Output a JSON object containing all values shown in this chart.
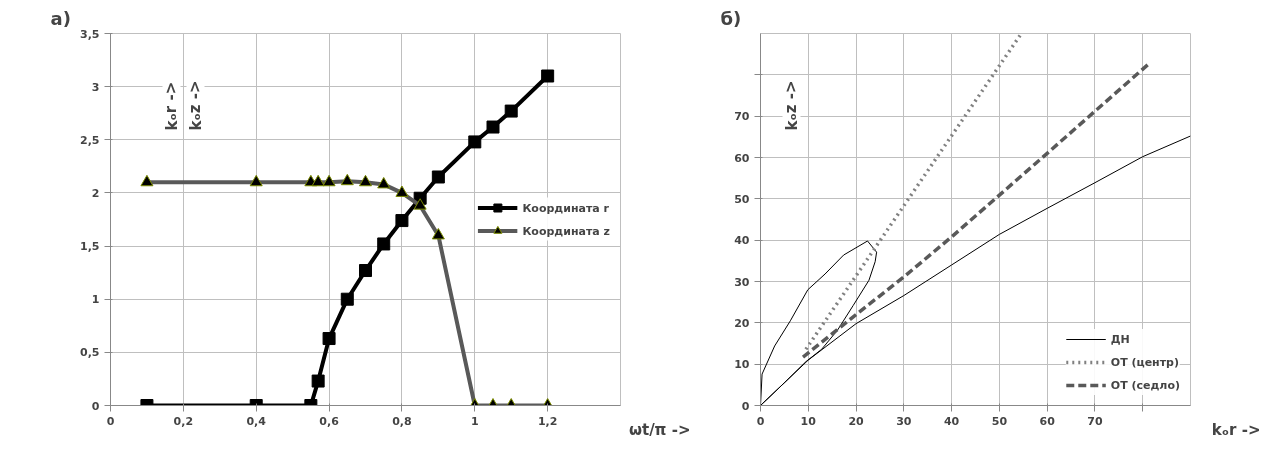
{
  "chart_data": [
    {
      "type": "line",
      "title": "а)",
      "xlabel": "ωt/π ->",
      "ylabel": "kₒr ->",
      "annotations": [
        "kₒz ->"
      ],
      "xlim": [
        0,
        1.4
      ],
      "ylim": [
        0,
        3.5
      ],
      "xticks": [
        0,
        {
          "value": 0.2,
          "label": "0,2"
        },
        {
          "value": 0.4,
          "label": "0,4"
        },
        {
          "value": 0.6,
          "label": "0,6"
        },
        {
          "value": 0.8,
          "label": "0,8"
        },
        1,
        {
          "value": 1.2,
          "label": "1,2"
        }
      ],
      "yticks": [
        0,
        {
          "value": 0.5,
          "label": "0,5"
        },
        1,
        {
          "value": 1.5,
          "label": "1,5"
        },
        2,
        {
          "value": 2.5,
          "label": "2,5"
        },
        3,
        {
          "value": 3.5,
          "label": "3,5"
        }
      ],
      "grid": true,
      "legend": "right",
      "line_style": "solid",
      "series": [
        {
          "name": "Координата r",
          "color": "#000000",
          "marker": "square",
          "x": [
            0.1,
            0.4,
            0.55,
            0.57,
            0.6,
            0.65,
            0.7,
            0.75,
            0.8,
            0.85,
            0.9,
            1,
            1.05,
            1.1,
            1.2
          ],
          "values": [
            0,
            0,
            0,
            0.23,
            0.63,
            1.0,
            1.27,
            1.52,
            1.74,
            1.95,
            2.15,
            2.48,
            2.62,
            2.77,
            3.1
          ]
        },
        {
          "name": "Координата z",
          "color": "#595959",
          "marker": "triangle",
          "x": [
            0.1,
            0.4,
            0.55,
            0.57,
            0.6,
            0.65,
            0.7,
            0.75,
            0.8,
            0.85,
            0.9,
            1,
            1.05,
            1.1,
            1.2
          ],
          "values": [
            2.1,
            2.1,
            2.1,
            2.1,
            2.1,
            2.11,
            2.1,
            2.08,
            2.0,
            1.88,
            1.6,
            0,
            0,
            0,
            0
          ]
        }
      ]
    },
    {
      "type": "line",
      "title": "б)",
      "xlabel": "kₒr ->",
      "ylabel": "kₒz ->",
      "xlim": [
        0,
        90
      ],
      "ylim": [
        0,
        90
      ],
      "xticks": [
        0,
        10,
        20,
        30,
        40,
        50,
        60,
        70,
        {
          "value": 80,
          "label": null
        }
      ],
      "yticks": [
        0,
        10,
        20,
        30,
        40,
        50,
        60,
        70,
        {
          "value": 80,
          "label": null
        }
      ],
      "grid": true,
      "legend": "bottom right",
      "marker": "none",
      "series": [
        {
          "name": "ДН",
          "color": "#000000",
          "line_style": "solid",
          "x": [
            0,
            0.33,
            2.96,
            6.25,
            9.9,
            13.5,
            17.4,
            22.4,
            24.3,
            24.0,
            22.7,
            19.4,
            16.1,
            12.8,
            9.5,
            5,
            0,
            10,
            20,
            30,
            40,
            50,
            60,
            70,
            80,
            90
          ],
          "values": [
            0,
            7.6,
            14.4,
            20.5,
            28.0,
            31.8,
            36.4,
            39.8,
            37.1,
            34.8,
            30.3,
            24.2,
            18.2,
            13.6,
            10.6,
            5.5,
            0,
            11,
            19.8,
            26.6,
            34,
            41.4,
            47.7,
            53.9,
            60.2,
            65.2
          ]
        },
        {
          "name": "ОТ (центр)",
          "color": "#808080",
          "line_style": "dotted",
          "x": [
            9.5,
            54.6
          ],
          "values": [
            13.6,
            90
          ]
        },
        {
          "name": "ОТ (седло)",
          "color": "#595959",
          "line_style": "dashed",
          "x": [
            8.9,
            20,
            30,
            40,
            60,
            81.6
          ],
          "values": [
            11.7,
            22,
            31.1,
            40.8,
            61,
            83
          ]
        }
      ]
    }
  ]
}
